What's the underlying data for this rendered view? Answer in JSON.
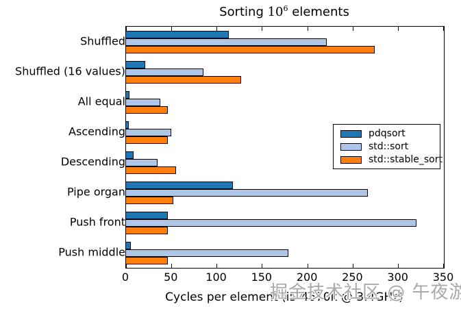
{
  "title": {
    "prefix": "Sorting ",
    "base": "10",
    "exponent": "6",
    "suffix": " elements",
    "full_text": "Sorting 10^6 elements"
  },
  "xlabel": "Cycles per element (i5-4670k @ 3.4GHz)",
  "watermark": "掘金技术社区 @ 午夜游鱼",
  "chart_data": {
    "type": "bar",
    "orientation": "horizontal",
    "title": "Sorting 10^6 elements",
    "xlabel": "Cycles per element (i5-4670k @ 3.4GHz)",
    "ylabel": "",
    "categories": [
      "Shuffled",
      "Shuffled (16 values)",
      "All equal",
      "Ascending",
      "Descending",
      "Pipe organ",
      "Push front",
      "Push middle"
    ],
    "series": [
      {
        "name": "pdqsort",
        "color": "#1f77b4",
        "values": [
          113,
          21,
          4,
          3,
          8,
          118,
          46,
          5
        ]
      },
      {
        "name": "std::sort",
        "color": "#aec7e8",
        "values": [
          221,
          85,
          38,
          50,
          35,
          266,
          320,
          179
        ]
      },
      {
        "name": "std::stable_sort",
        "color": "#ff7f0e",
        "values": [
          274,
          127,
          46,
          46,
          55,
          52,
          46,
          46
        ]
      }
    ],
    "xlim": [
      0,
      350
    ],
    "xticks": [
      0,
      50,
      100,
      150,
      200,
      250,
      300,
      350
    ],
    "grid": false,
    "bar_edge_color": "#000000",
    "legend": {
      "position": "center-right",
      "entries": [
        "pdqsort",
        "std::sort",
        "std::stable_sort"
      ]
    }
  }
}
